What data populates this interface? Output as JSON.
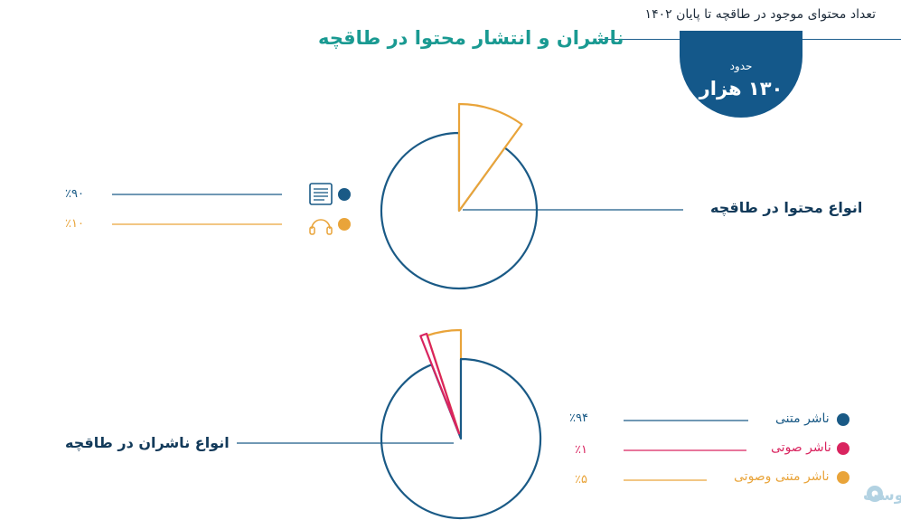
{
  "header": {
    "caption": "تعداد محتوای موجود در طاقچه تا پایان ۱۴۰۲",
    "title": "ناشران و انتشار محتوا در طاقچه"
  },
  "badge": {
    "small": "حدود",
    "big": "۱۳۰ هزار"
  },
  "colors": {
    "navy": "#1a5a86",
    "orange": "#e9a43a",
    "pink": "#d9245f",
    "teal": "#1a9a92",
    "dark": "#123a5a"
  },
  "chart_data": [
    {
      "type": "pie",
      "title": "انواع محتوا در طاقچه",
      "slices": [
        {
          "value": 90,
          "color": "#1a5a86",
          "icon": "ebook-icon",
          "pct_label": "٪۹۰"
        },
        {
          "value": 10,
          "color": "#e9a43a",
          "icon": "headphones-icon",
          "pct_label": "٪۱۰"
        }
      ]
    },
    {
      "type": "pie",
      "title": "انواع ناشران در طاقچه",
      "slices": [
        {
          "name": "ناشر متنی",
          "value": 94,
          "color": "#1a5a86",
          "pct_label": "٪۹۴"
        },
        {
          "name": "ناشر صوتی",
          "value": 1,
          "color": "#d9245f",
          "pct_label": "٪۱"
        },
        {
          "name": "ناشر متنی وصوتی",
          "value": 5,
          "color": "#e9a43a",
          "pct_label": "٪۵"
        }
      ]
    }
  ],
  "watermark": "پیوست"
}
